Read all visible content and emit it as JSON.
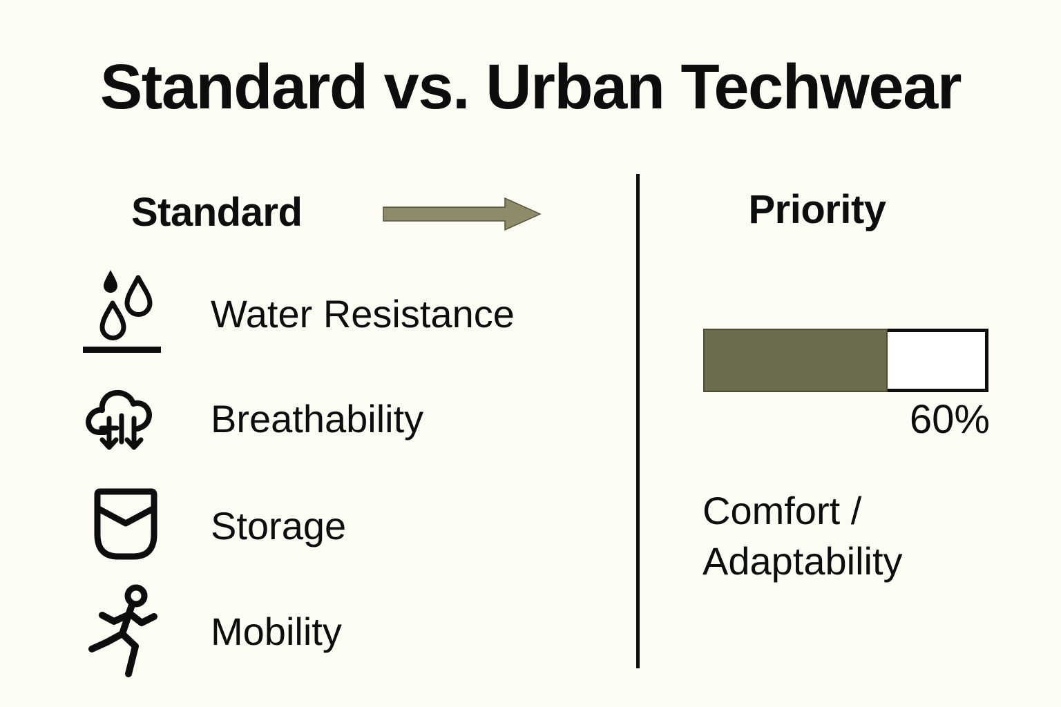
{
  "title": "Standard vs. Urban Techwear",
  "left_panel": {
    "heading": "Standard",
    "items": [
      {
        "icon": "water-resistance-icon",
        "label": "Water Resistance"
      },
      {
        "icon": "breathability-icon",
        "label": "Breathability"
      },
      {
        "icon": "storage-icon",
        "label": "Storage"
      },
      {
        "icon": "mobility-icon",
        "label": "Mobility"
      }
    ]
  },
  "right_panel": {
    "heading": "Priority",
    "bar_value_label": "60%",
    "caption_line1": "Comfort /",
    "caption_line2": "Adaptability"
  },
  "colors": {
    "background": "#FCFBF4",
    "text": "#0d0d0d",
    "olive_bar_fill": "#6E6C4E",
    "khaki_arrow": "#8D8B6A",
    "bar_empty": "#FFFFFF"
  },
  "chart_data": {
    "type": "bar",
    "title": "Priority",
    "categories": [
      "Comfort / Adaptability"
    ],
    "values": [
      60
    ],
    "unit": "%",
    "value_labels": [
      "60%"
    ],
    "fill_fraction": 0.662,
    "legend_position": "none",
    "grid": false
  }
}
